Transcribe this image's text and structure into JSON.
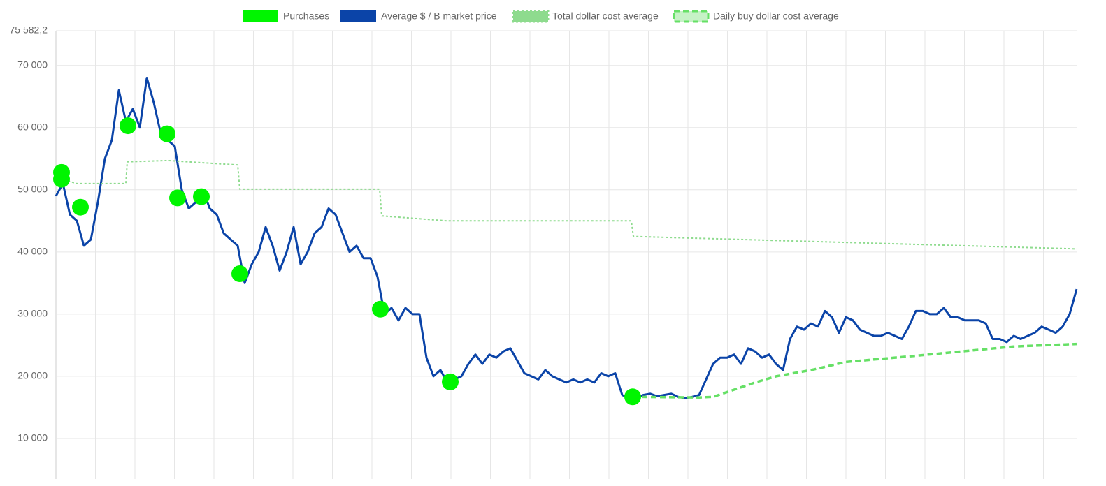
{
  "chart_data": {
    "type": "line",
    "ylim": [
      3480,
      75582.2
    ],
    "yticks": [
      {
        "value": 75582.2,
        "label": "75 582,2"
      },
      {
        "value": 70000,
        "label": "70 000"
      },
      {
        "value": 60000,
        "label": "60 000"
      },
      {
        "value": 50000,
        "label": "50 000"
      },
      {
        "value": 40000,
        "label": "40 000"
      },
      {
        "value": 30000,
        "label": "30 000"
      },
      {
        "value": 20000,
        "label": "20 000"
      },
      {
        "value": 10000,
        "label": "10 000"
      }
    ],
    "xlim": [
      0,
      146
    ],
    "grid": true,
    "legend": "top",
    "series": [
      {
        "name": "Purchases",
        "type": "scatter",
        "color": "#00f500",
        "x": [
          0.8,
          0.8,
          3.5,
          10.3,
          15.9,
          17.4,
          20.8,
          26.3,
          46.4,
          56.4,
          82.5
        ],
        "values": [
          52800,
          51700,
          47200,
          60300,
          59000,
          48700,
          48900,
          36500,
          30800,
          19100,
          16700
        ]
      },
      {
        "name": "Average $ / Ƀ market price",
        "type": "line",
        "color": "#0b44a8",
        "x": [
          0,
          1,
          2,
          3,
          4,
          5,
          6,
          7,
          8,
          9,
          10,
          11,
          12,
          13,
          14,
          15,
          16,
          17,
          18,
          19,
          20,
          21,
          22,
          23,
          24,
          25,
          26,
          27,
          28,
          29,
          30,
          31,
          32,
          33,
          34,
          35,
          36,
          37,
          38,
          39,
          40,
          41,
          42,
          43,
          44,
          45,
          46,
          47,
          48,
          49,
          50,
          51,
          52,
          53,
          54,
          55,
          56,
          57,
          58,
          59,
          60,
          61,
          62,
          63,
          64,
          65,
          66,
          67,
          68,
          69,
          70,
          71,
          72,
          73,
          74,
          75,
          76,
          77,
          78,
          79,
          80,
          81,
          82,
          83,
          84,
          85,
          86,
          87,
          88,
          89,
          90,
          91,
          92,
          93,
          94,
          95,
          96,
          97,
          98,
          99,
          100,
          101,
          102,
          103,
          104,
          105,
          106,
          107,
          108,
          109,
          110,
          111,
          112,
          113,
          114,
          115,
          116,
          117,
          118,
          119,
          120,
          121,
          122,
          123,
          124,
          125,
          126,
          127,
          128,
          129,
          130,
          131,
          132,
          133,
          134,
          135,
          136,
          137,
          138,
          139,
          140,
          141,
          142,
          143,
          144,
          145,
          146
        ],
        "values": [
          49000,
          51000,
          46000,
          45000,
          41000,
          42000,
          48000,
          55000,
          58000,
          66000,
          61000,
          63000,
          60000,
          68000,
          64000,
          59000,
          58000,
          57000,
          50000,
          47000,
          48000,
          50000,
          47000,
          46000,
          43000,
          42000,
          41000,
          35000,
          38000,
          40000,
          44000,
          41000,
          37000,
          40000,
          44000,
          38000,
          40000,
          43000,
          44000,
          47000,
          46000,
          43000,
          40000,
          41000,
          39000,
          39000,
          36000,
          30000,
          31000,
          29000,
          31000,
          30000,
          30000,
          23000,
          20000,
          21000,
          19000,
          19500,
          20000,
          22000,
          23500,
          22000,
          23500,
          23000,
          24000,
          24500,
          22500,
          20500,
          20000,
          19500,
          21000,
          20000,
          19500,
          19000,
          19500,
          19000,
          19500,
          19000,
          20500,
          20000,
          20500,
          17000,
          16500,
          16500,
          17000,
          17200,
          16800,
          17000,
          17200,
          16700,
          16500,
          16700,
          17000,
          19500,
          22000,
          23000,
          23000,
          23500,
          22000,
          24500,
          24000,
          23000,
          23500,
          22000,
          21000,
          26000,
          28000,
          27500,
          28500,
          28000,
          30500,
          29500,
          27000,
          29500,
          29000,
          27500,
          27000,
          26500,
          26500,
          27000,
          26500,
          26000,
          28000,
          30500,
          30500,
          30000,
          30000,
          31000,
          29500,
          29500,
          29000,
          29000,
          29000,
          28500,
          26000,
          26000,
          25500,
          26500,
          26000,
          26500,
          27000,
          28000,
          27500,
          27000,
          28000,
          30000,
          34000
        ]
      },
      {
        "name": "Total dollar cost average",
        "type": "line",
        "color": "#8edb8e",
        "dash": "3 3",
        "x": [
          0,
          3,
          10,
          10.2,
          16,
          26,
          26.3,
          46.3,
          46.6,
          56,
          82.3,
          82.6,
          146
        ],
        "values": [
          52000,
          51000,
          51000,
          54500,
          54700,
          54000,
          50100,
          50100,
          45800,
          45000,
          45000,
          42500,
          40500
        ]
      },
      {
        "name": "Daily buy dollar cost average",
        "type": "line",
        "color": "#66e066",
        "dash": "8 5",
        "x": [
          82.5,
          92,
          94,
          100,
          103,
          108,
          113,
          123,
          137,
          146
        ],
        "values": [
          16700,
          16600,
          16700,
          19000,
          20000,
          21000,
          22300,
          23300,
          24800,
          25200
        ]
      }
    ]
  }
}
